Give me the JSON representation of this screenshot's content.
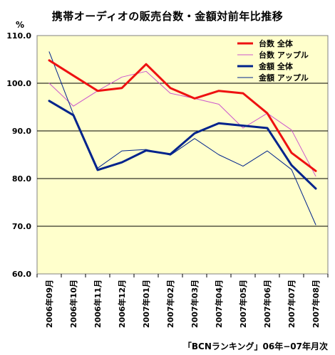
{
  "chart_data": {
    "type": "line",
    "title": "携帯オーディオの販売台数・金額対前年比推移",
    "ylabel": "%",
    "source": "「BCNランキング」06年−07年月次",
    "ylim": [
      60,
      110
    ],
    "yticks": [
      "110.0",
      "100.0",
      "90.0",
      "80.0",
      "70.0",
      "60.0"
    ],
    "grid": true,
    "legend": "top-right",
    "categories": [
      "2006年09月",
      "2006年10月",
      "2006年11月",
      "2006年12月",
      "2007年01月",
      "2007年02月",
      "2007年03月",
      "2007年04月",
      "2007年05月",
      "2007年06月",
      "2007年07月",
      "2007年08月"
    ],
    "series": [
      {
        "name": "台数 全体",
        "color": "#ee1111",
        "width": 3,
        "values": [
          104.8,
          101.6,
          98.4,
          99.0,
          104.0,
          99.0,
          96.8,
          98.4,
          97.9,
          93.7,
          85.4,
          81.6
        ]
      },
      {
        "name": "台数 アップル",
        "color": "#cc55cc",
        "width": 1,
        "values": [
          100.0,
          95.2,
          98.4,
          101.3,
          102.5,
          97.9,
          96.8,
          95.6,
          90.6,
          93.7,
          90.2,
          80.5
        ]
      },
      {
        "name": "金額 全体",
        "color": "#00238c",
        "width": 3,
        "values": [
          96.3,
          93.3,
          81.8,
          83.4,
          85.9,
          85.1,
          89.5,
          91.6,
          91.1,
          90.6,
          82.8,
          77.9
        ]
      },
      {
        "name": "金額 アップル",
        "color": "#00238c",
        "width": 1,
        "values": [
          106.6,
          93.5,
          82.2,
          85.8,
          86.1,
          84.9,
          88.4,
          85.0,
          82.6,
          85.8,
          81.9,
          70.3
        ]
      }
    ]
  }
}
